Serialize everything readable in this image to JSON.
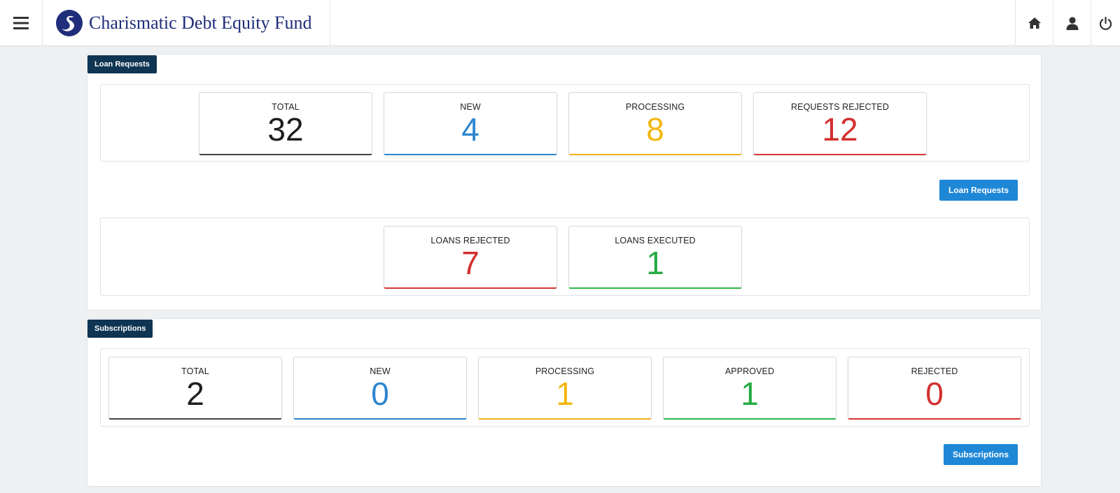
{
  "header": {
    "title": "Charismatic Debt Equity Fund",
    "icons": [
      "menu-icon",
      "home-icon",
      "user-icon",
      "power-icon"
    ],
    "brand_color": "#1f2d7a"
  },
  "loans": {
    "tag": "Loan Requests",
    "request_cards": [
      {
        "label": "TOTAL",
        "value": "32",
        "color": "#1e1e1e"
      },
      {
        "label": "NEW",
        "value": "4",
        "color": "#2e86d0"
      },
      {
        "label": "PROCESSING",
        "value": "8",
        "color": "#f2b70f"
      },
      {
        "label": "REQUESTS REJECTED",
        "value": "12",
        "color": "#d22f2f"
      }
    ],
    "button_label": "Loan Requests",
    "loan_cards": [
      {
        "label": "LOANS REJECTED",
        "value": "7",
        "color": "#d22f2f"
      },
      {
        "label": "LOANS EXECUTED",
        "value": "1",
        "color": "#25ab42"
      }
    ]
  },
  "subscriptions": {
    "tag": "Subscriptions",
    "cards": [
      {
        "label": "TOTAL",
        "value": "2",
        "color": "#1e1e1e"
      },
      {
        "label": "NEW",
        "value": "0",
        "color": "#2e86d0"
      },
      {
        "label": "PROCESSING",
        "value": "1",
        "color": "#f2b70f"
      },
      {
        "label": "APPROVED",
        "value": "1",
        "color": "#25ab42"
      },
      {
        "label": "REJECTED",
        "value": "0",
        "color": "#d22f2f"
      }
    ],
    "button_label": "Subscriptions"
  },
  "colors": {
    "tag_bg": "#0f3552",
    "button_bg": "#1e87d6",
    "page_bg": "#eef0f2"
  }
}
